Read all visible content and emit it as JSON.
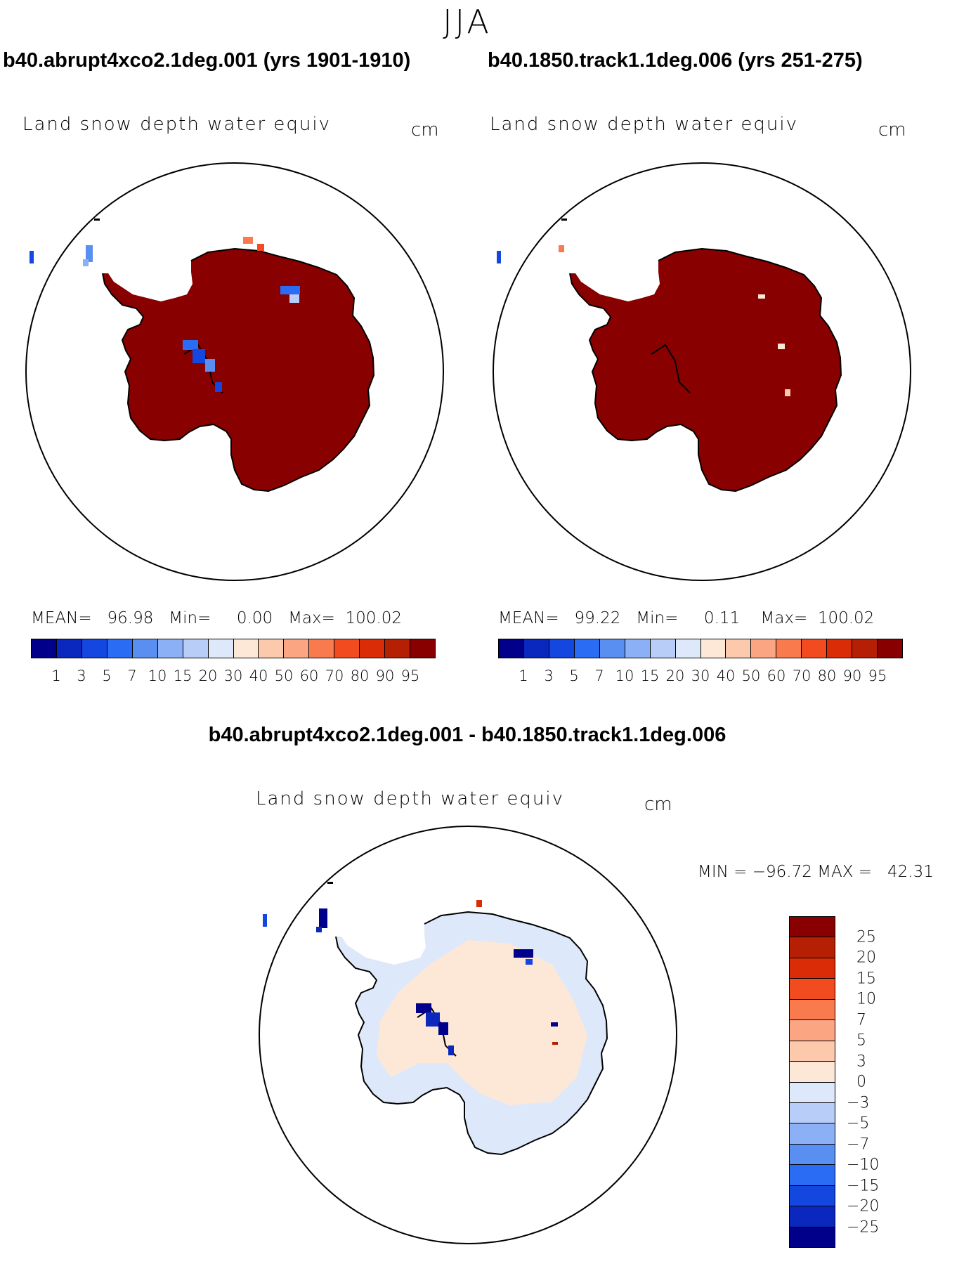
{
  "season": "JJA",
  "panels": [
    {
      "case_title": "b40.abrupt4xco2.1deg.001 (yrs 1901-1910)",
      "variable": "Land snow depth water equiv",
      "units": "cm",
      "stats": "MEAN=   96.98   Min=     0.00   Max=  100.02",
      "colorbar": {
        "ticks": [
          "1",
          "3",
          "5",
          "7",
          "10",
          "15",
          "20",
          "30",
          "40",
          "50",
          "60",
          "70",
          "80",
          "90",
          "95"
        ],
        "colors": [
          "#00008b",
          "#0a28bd",
          "#1446e0",
          "#2b6cf5",
          "#5a8ff2",
          "#8cb0f5",
          "#b8cdf7",
          "#dde9fa",
          "#fde8d8",
          "#fcc9ac",
          "#fba583",
          "#f97a4d",
          "#f24b1f",
          "#db2c08",
          "#b51f04",
          "#880000"
        ]
      },
      "dominant_fill": "#880000"
    },
    {
      "case_title": "b40.1850.track1.1deg.006 (yrs 251-275)",
      "variable": "Land snow depth water equiv",
      "units": "cm",
      "stats": "MEAN=   99.22   Min=     0.11    Max=  100.02",
      "colorbar": {
        "ticks": [
          "1",
          "3",
          "5",
          "7",
          "10",
          "15",
          "20",
          "30",
          "40",
          "50",
          "60",
          "70",
          "80",
          "90",
          "95"
        ],
        "colors": [
          "#00008b",
          "#0a28bd",
          "#1446e0",
          "#2b6cf5",
          "#5a8ff2",
          "#8cb0f5",
          "#b8cdf7",
          "#dde9fa",
          "#fde8d8",
          "#fcc9ac",
          "#fba583",
          "#f97a4d",
          "#f24b1f",
          "#db2c08",
          "#b51f04",
          "#880000"
        ]
      },
      "dominant_fill": "#880000"
    }
  ],
  "diff_panel": {
    "title": "b40.abrupt4xco2.1deg.001 - b40.1850.track1.1deg.006",
    "variable": "Land snow depth water equiv",
    "units": "cm",
    "stats": "MIN = −96.72 MAX =   42.31",
    "colorbar": {
      "ticks": [
        "25",
        "20",
        "15",
        "10",
        "7",
        "5",
        "3",
        "0",
        "−3",
        "−5",
        "−7",
        "−10",
        "−15",
        "−20",
        "−25"
      ],
      "colors": [
        "#880000",
        "#b51f04",
        "#db2c08",
        "#f24b1f",
        "#f97a4d",
        "#fba583",
        "#fcc9ac",
        "#fde8d8",
        "#dde9fa",
        "#b8cdf7",
        "#8cb0f5",
        "#5a8ff2",
        "#2b6cf5",
        "#1446e0",
        "#0a28bd",
        "#00008b"
      ]
    },
    "fill_light_blue": "#dde9fa",
    "fill_light_orange": "#fde8d8"
  }
}
